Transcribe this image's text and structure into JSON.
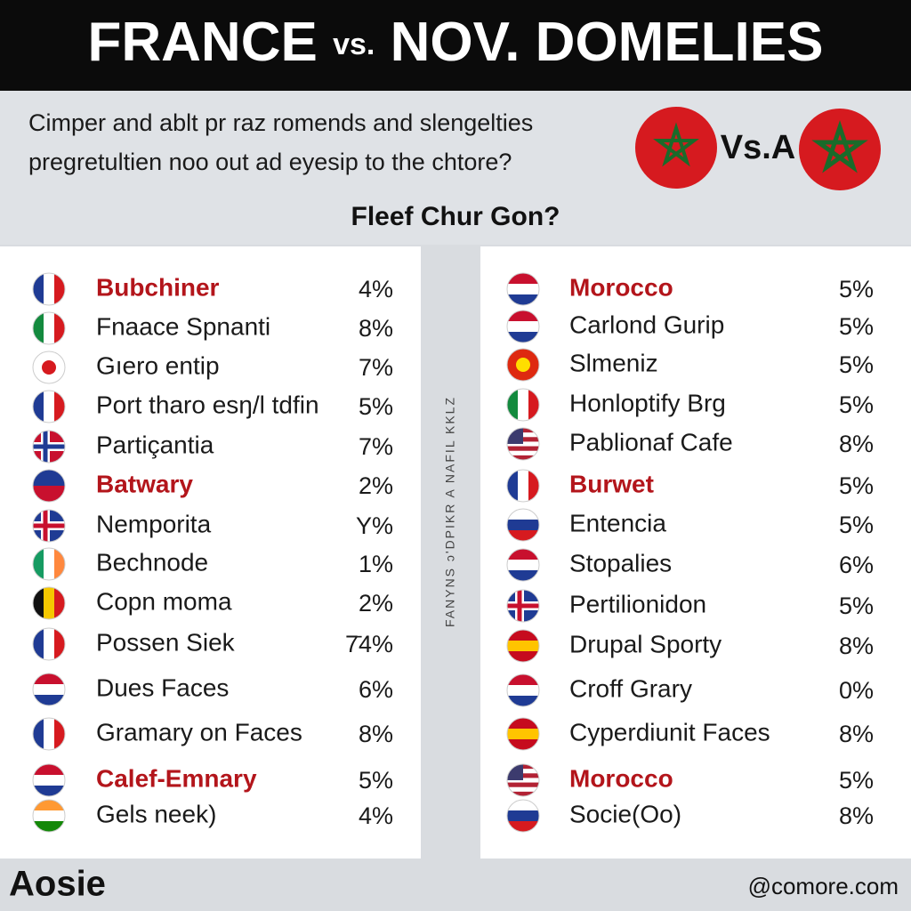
{
  "header": {
    "title_left": "FRANCE",
    "title_vs": "vs.",
    "title_right": "NOV. DOMELIES"
  },
  "intro": {
    "lines": [
      "Cimper and ablt pr raz romends and slengelties",
      "pregretultien noo out ad eyesip to the chtore?"
    ],
    "versus": "Vs.A"
  },
  "subtitle": "Fleef Chur Gon?",
  "side_note": "FANYNS ɔ'DPIKR A NAFIL KKLZ",
  "left_list": [
    {
      "name": "Bubchiner",
      "value": "4%",
      "highlight": true
    },
    {
      "name": "Fnaace Spnanti",
      "value": "8%"
    },
    {
      "name": "Gıero entip",
      "value": "7%"
    },
    {
      "name": "Port tharo esŋ/l tdfin",
      "value": "5%"
    },
    {
      "name": "Partiçantia",
      "value": "7%"
    },
    {
      "name": "Batwary",
      "value": "2%",
      "highlight": true
    },
    {
      "name": "Nemporita",
      "value": "Y%"
    },
    {
      "name": "Bechnode",
      "value": "1%"
    },
    {
      "name": "Copn moma",
      "value": "2%"
    },
    {
      "name": "Possen Siek",
      "value": "7̄4%"
    },
    {
      "name": "Dues Faces",
      "value": "6%"
    },
    {
      "name": "Gramary on Faces",
      "value": "8%"
    },
    {
      "name": "Calef-Emnary",
      "value": "5%",
      "highlight": true
    },
    {
      "name": "Gels neek)",
      "value": "4%"
    }
  ],
  "right_list": [
    {
      "name": "Morocco",
      "value": "5%",
      "highlight": true
    },
    {
      "name": "Carlond Gurip",
      "value": "5%"
    },
    {
      "name": "Slmeniz",
      "value": "5%"
    },
    {
      "name": "Honloptify Brg",
      "value": "5%"
    },
    {
      "name": "Pablionaf Cafe",
      "value": "8%"
    },
    {
      "name": "Burwet",
      "value": "5%",
      "highlight": true
    },
    {
      "name": "Entencia",
      "value": "5%"
    },
    {
      "name": "Stopalies",
      "value": "6%"
    },
    {
      "name": "Pertilionidon",
      "value": "5%"
    },
    {
      "name": "Drupal Sporty",
      "value": "8%"
    },
    {
      "name": "Croff Grary",
      "value": "0%"
    },
    {
      "name": "Cyperdiunit Faces",
      "value": "8%"
    },
    {
      "name": "Morocco",
      "value": "5%",
      "highlight": true
    },
    {
      "name": "Socie(Oo)",
      "value": "8%"
    }
  ],
  "footer": {
    "logo": "Aosie",
    "credit": "@comore.com"
  }
}
